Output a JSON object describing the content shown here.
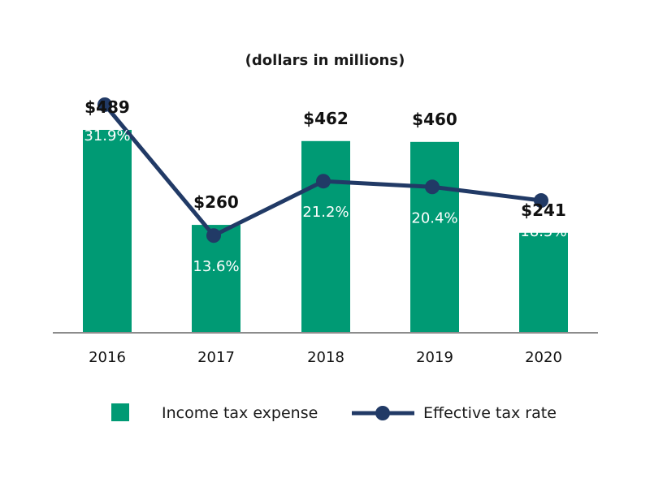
{
  "chart_data": {
    "type": "bar+line",
    "title": "(dollars in millions)",
    "categories": [
      "2016",
      "2017",
      "2018",
      "2019",
      "2020"
    ],
    "series": [
      {
        "name": "Income tax expense",
        "type": "bar",
        "values": [
          489,
          260,
          462,
          460,
          241
        ],
        "labels": [
          "$489",
          "$260",
          "$462",
          "$460",
          "$241"
        ],
        "color": "#009a74"
      },
      {
        "name": "Effective tax rate",
        "type": "line",
        "values": [
          31.9,
          13.6,
          21.2,
          20.4,
          18.5
        ],
        "labels": [
          "31.9%",
          "13.6%",
          "21.2%",
          "20.4%",
          "18.5%"
        ],
        "color": "#213a66"
      }
    ],
    "bar_ylim": [
      0,
      489
    ],
    "line_ylim": [
      0,
      42
    ],
    "legend_position": "bottom",
    "grid": false
  }
}
